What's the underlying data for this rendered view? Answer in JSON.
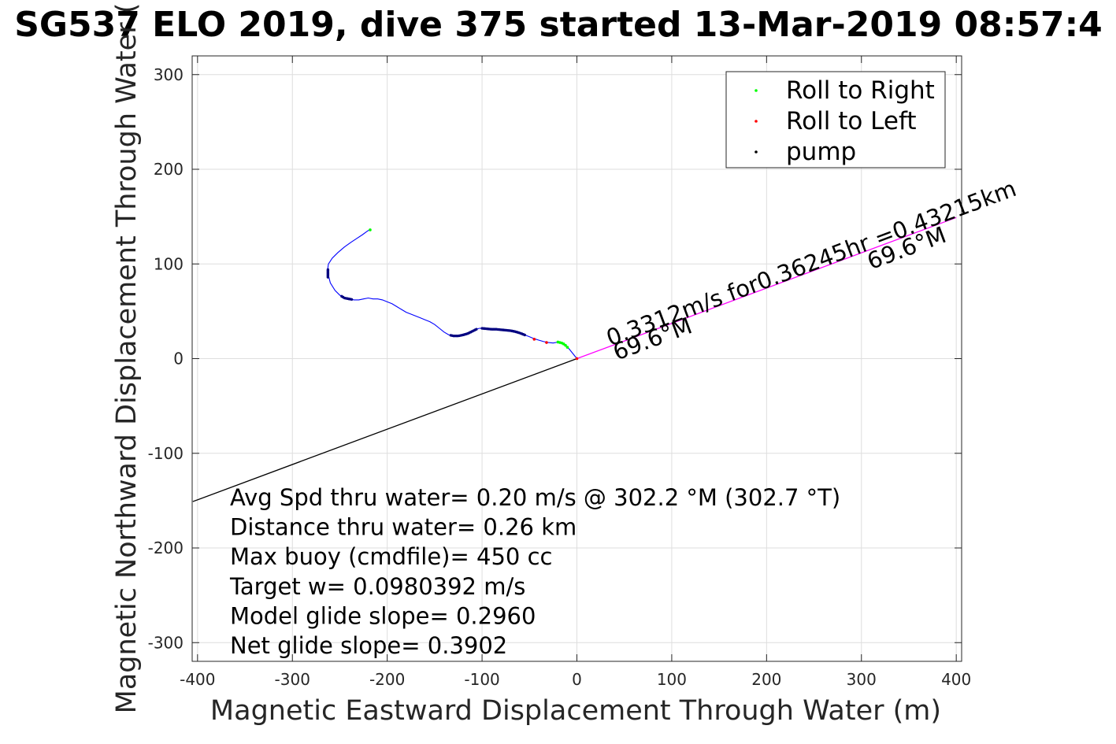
{
  "chart_data": {
    "type": "line",
    "title": "SG537 ELO 2019, dive 375 started 13-Mar-2019 08:57:4",
    "xlabel": "Magnetic Eastward Displacement Through Water (m)",
    "ylabel": "Magnetic Northward Displacement Through Water (",
    "xlim": [
      -405,
      405
    ],
    "ylim": [
      -320,
      320
    ],
    "xticks": [
      -400,
      -300,
      -200,
      -100,
      0,
      100,
      200,
      300,
      400
    ],
    "yticks": [
      -300,
      -200,
      -100,
      0,
      100,
      200,
      300
    ],
    "grid": true,
    "legend": {
      "placement": "top-right",
      "entries": [
        {
          "label": "Roll to Right",
          "color": "#00ff00"
        },
        {
          "label": "Roll to Left",
          "color": "#ff0000"
        },
        {
          "label": "pump",
          "color": "#000000"
        }
      ]
    },
    "track": {
      "color": "#0000ff",
      "x": [
        0,
        -4,
        -8,
        -12,
        -16,
        -20,
        -25,
        -30,
        -35,
        -40,
        -45,
        -50,
        -55,
        -60,
        -65,
        -70,
        -75,
        -80,
        -85,
        -90,
        -95,
        -100,
        -103,
        -106,
        -110,
        -115,
        -120,
        -125,
        -130,
        -135,
        -140,
        -145,
        -150,
        -155,
        -160,
        -165,
        -170,
        -175,
        -180,
        -185,
        -190,
        -195,
        -200,
        -205,
        -210,
        -215,
        -220,
        -225,
        -230,
        -235,
        -240,
        -245,
        -250,
        -255,
        -260,
        -262,
        -263,
        -262,
        -258,
        -252,
        -245,
        -238,
        -232,
        -226,
        -222,
        -219,
        -218
      ],
      "y": [
        0,
        5,
        10,
        14,
        17,
        17.5,
        16.5,
        17,
        18,
        19.5,
        21,
        23,
        25,
        27,
        28.5,
        29.5,
        30,
        30.5,
        31,
        31,
        31.5,
        32,
        32,
        31,
        29,
        26.5,
        25,
        24,
        24,
        25,
        28,
        32,
        36,
        39,
        41,
        43,
        45,
        47,
        49,
        52,
        55,
        58,
        60,
        62,
        63,
        63,
        64,
        63,
        62,
        62,
        63,
        64,
        67,
        72,
        80,
        88,
        93,
        100,
        106,
        112,
        118,
        123,
        127,
        131,
        134,
        136,
        136
      ]
    },
    "pump_points": {
      "color": "#000080",
      "segments": [
        {
          "x_from": -133,
          "x_to": -105
        },
        {
          "x_from": -100,
          "x_to": -55
        },
        {
          "x_from": -248,
          "x_to": -237
        },
        {
          "x_from": -263,
          "x_to": -262
        }
      ]
    },
    "roll_right_points": {
      "color": "#00ff00",
      "x": [
        -20,
        -18,
        -16,
        -14,
        -12,
        -10,
        -218
      ],
      "y": [
        17.5,
        17,
        16.5,
        15.5,
        14,
        12,
        136
      ]
    },
    "roll_left_points": {
      "color": "#ff0000",
      "x": [
        -45,
        -32,
        0
      ],
      "y": [
        20.5,
        17,
        0
      ]
    },
    "heading_line": {
      "color": "#ff00ff",
      "x": [
        0,
        400
      ],
      "y": [
        0,
        149
      ]
    },
    "reciprocal_line": {
      "color": "#000000",
      "x": [
        0,
        -405
      ],
      "y": [
        0,
        -151
      ]
    },
    "annotations": [
      {
        "text": "0.3312m/s for0.36245hr =0.43215km",
        "x": 35,
        "y": 13,
        "angle_deg": 20.4
      },
      {
        "text": "69.6°M",
        "x": 42,
        "y": -2,
        "angle_deg": 20.4
      },
      {
        "text": "69.6°M",
        "x": 310,
        "y": 94,
        "angle_deg": 20.4
      }
    ],
    "info_lines": [
      "Avg Spd thru water=  0.20 m/s @ 302.2 °M (302.7 °T)",
      "Distance thru water=  0.26 km",
      "Max buoy (cmdfile)= 450 cc",
      "Target w= 0.0980392 m/s",
      "Model glide slope= 0.2960",
      "Net glide slope= 0.3902"
    ]
  }
}
